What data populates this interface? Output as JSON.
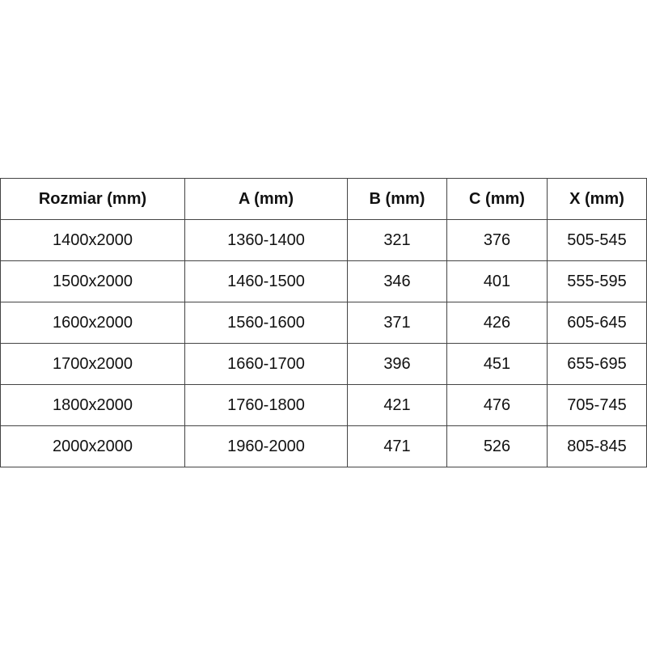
{
  "table": {
    "header": [
      "Rozmiar (mm)",
      "A (mm)",
      "B (mm)",
      "C (mm)",
      "X (mm)"
    ],
    "rows": [
      [
        "1400x2000",
        "1360-1400",
        "321",
        "376",
        "505-545"
      ],
      [
        "1500x2000",
        "1460-1500",
        "346",
        "401",
        "555-595"
      ],
      [
        "1600x2000",
        "1560-1600",
        "371",
        "426",
        "605-645"
      ],
      [
        "1700x2000",
        "1660-1700",
        "396",
        "451",
        "655-695"
      ],
      [
        "1800x2000",
        "1760-1800",
        "421",
        "476",
        "705-745"
      ],
      [
        "2000x2000",
        "1960-2000",
        "471",
        "526",
        "805-845"
      ]
    ]
  }
}
